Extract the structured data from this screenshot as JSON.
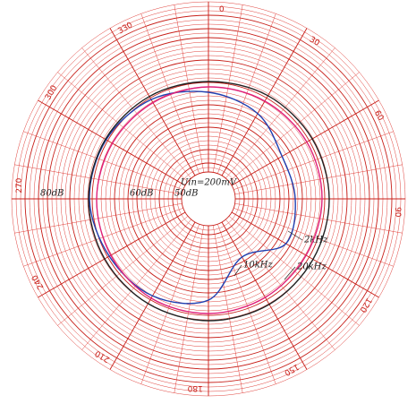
{
  "chart_data": {
    "type": "polar",
    "annotation": "Uin=200mV",
    "rlim": [
      48,
      86
    ],
    "rticks": [
      {
        "value": 50,
        "label": "50dB"
      },
      {
        "value": 60,
        "label": "60dB"
      },
      {
        "value": 80,
        "label": "80dB"
      }
    ],
    "theta": [
      0,
      30,
      60,
      90,
      120,
      150,
      180,
      210,
      240,
      270,
      300,
      330
    ],
    "thetaticks": [
      0,
      30,
      60,
      90,
      120,
      150,
      180,
      210,
      240,
      270,
      300,
      330
    ],
    "series": [
      {
        "name": "2kHz",
        "color": "#1f3fb0",
        "values": [
          65.8,
          64,
          61,
          61.4,
          62,
          57,
          64.6,
          67,
          67.6,
          68.6,
          68.4,
          67.6
        ]
      },
      {
        "name": "10kHz",
        "color": "#e0207a",
        "values": [
          67,
          67.2,
          67.4,
          67.4,
          67.2,
          67.4,
          67.6,
          67.6,
          67.2,
          67,
          66.8,
          66.8
        ]
      },
      {
        "name": "20kHz",
        "color": "#222222",
        "values": [
          68.2,
          68.6,
          68.8,
          69,
          69,
          69.2,
          69.2,
          69,
          68.8,
          68.8,
          68.6,
          68.4
        ]
      }
    ]
  }
}
